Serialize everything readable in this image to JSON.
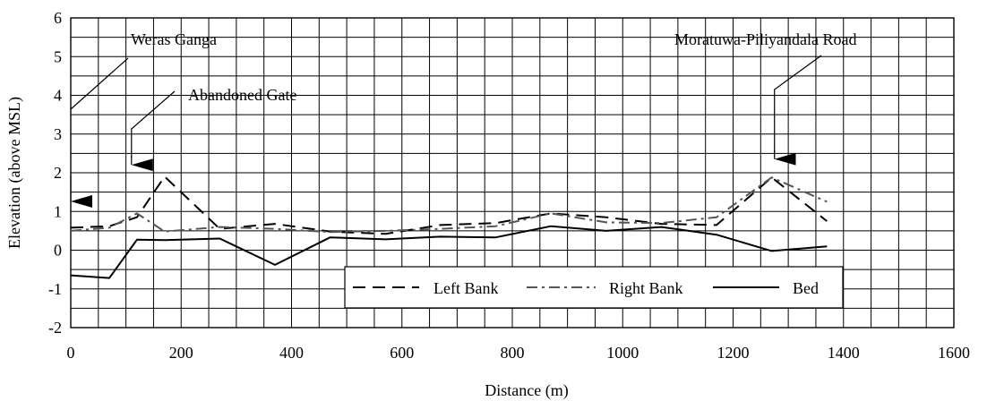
{
  "chart_data": {
    "type": "line",
    "xlabel": "Distance (m)",
    "ylabel": "Elevation (above MSL)",
    "xlim": [
      0,
      1600
    ],
    "ylim": [
      -2,
      6
    ],
    "xticks": [
      0,
      200,
      400,
      600,
      800,
      1000,
      1200,
      1400,
      1600
    ],
    "yticks": [
      -2,
      -1,
      0,
      1,
      2,
      3,
      4,
      5,
      6
    ],
    "grid": true,
    "minor_grid_x": 50,
    "minor_grid_y": 0.5,
    "legend_position": "bottom-right inside plot",
    "series": [
      {
        "name": "Left Bank",
        "style": "dashed",
        "color": "#000000",
        "points": [
          [
            0,
            0.58
          ],
          [
            70,
            0.62
          ],
          [
            120,
            0.85
          ],
          [
            170,
            1.9
          ],
          [
            270,
            0.55
          ],
          [
            370,
            0.68
          ],
          [
            470,
            0.48
          ],
          [
            570,
            0.42
          ],
          [
            670,
            0.65
          ],
          [
            770,
            0.7
          ],
          [
            870,
            0.95
          ],
          [
            970,
            0.85
          ],
          [
            1070,
            0.68
          ],
          [
            1170,
            0.65
          ],
          [
            1270,
            1.88
          ],
          [
            1370,
            0.75
          ]
        ]
      },
      {
        "name": "Right Bank",
        "style": "dash-dot",
        "color": "#555555",
        "points": [
          [
            0,
            0.5
          ],
          [
            70,
            0.58
          ],
          [
            120,
            0.95
          ],
          [
            170,
            0.48
          ],
          [
            270,
            0.6
          ],
          [
            370,
            0.55
          ],
          [
            470,
            0.47
          ],
          [
            570,
            0.5
          ],
          [
            670,
            0.55
          ],
          [
            770,
            0.62
          ],
          [
            870,
            0.95
          ],
          [
            970,
            0.72
          ],
          [
            1070,
            0.7
          ],
          [
            1170,
            0.85
          ],
          [
            1270,
            1.88
          ],
          [
            1370,
            1.25
          ]
        ]
      },
      {
        "name": "Bed",
        "style": "solid",
        "color": "#000000",
        "points": [
          [
            0,
            -0.65
          ],
          [
            70,
            -0.72
          ],
          [
            120,
            0.27
          ],
          [
            170,
            0.26
          ],
          [
            270,
            0.3
          ],
          [
            370,
            -0.38
          ],
          [
            470,
            0.33
          ],
          [
            570,
            0.28
          ],
          [
            670,
            0.35
          ],
          [
            770,
            0.33
          ],
          [
            870,
            0.62
          ],
          [
            970,
            0.5
          ],
          [
            1070,
            0.6
          ],
          [
            1170,
            0.4
          ],
          [
            1270,
            -0.02
          ],
          [
            1370,
            0.1
          ]
        ]
      }
    ],
    "annotations": [
      {
        "text": "Weras Ganga",
        "target_x": 0,
        "target_y": 1.4
      },
      {
        "text": "Abandoned Gate",
        "target_x": 110,
        "target_y": 2.25
      },
      {
        "text": "Moratuwa-Piliyandala Road",
        "target_x": 1275,
        "target_y": 2.4
      }
    ]
  }
}
